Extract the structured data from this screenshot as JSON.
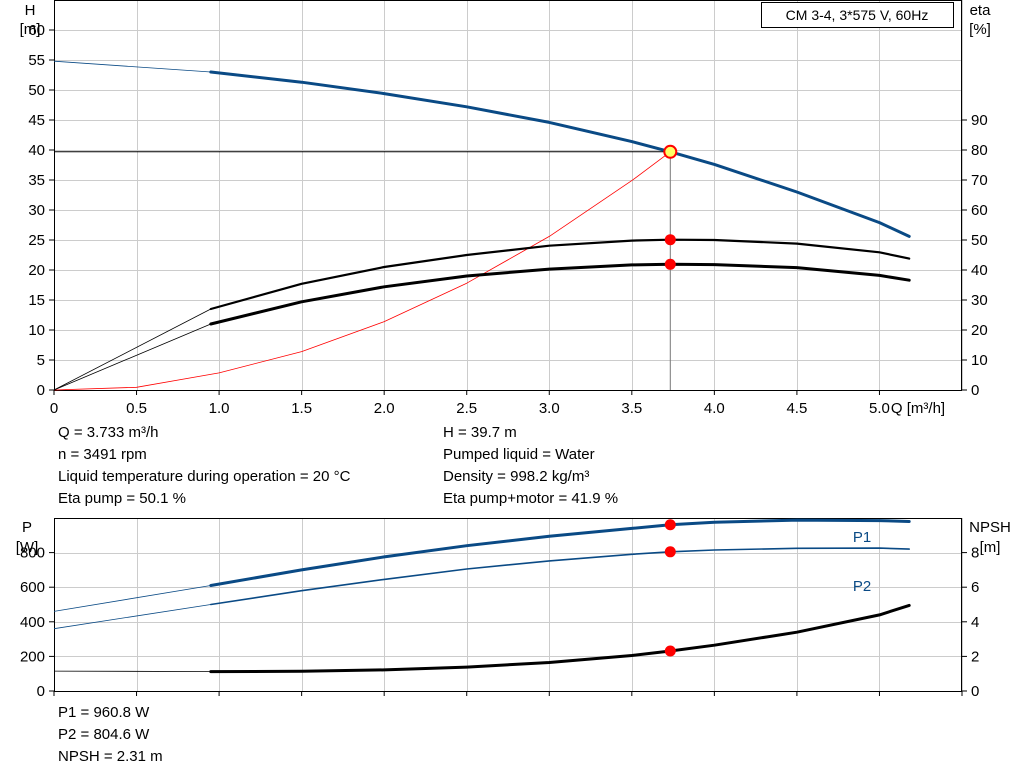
{
  "main_chart": {
    "type": "line",
    "legend_box": "CM 3-4, 3*575 V, 60Hz",
    "y_left_label": [
      "H",
      "[m]"
    ],
    "y_right_label": [
      "eta",
      "[%]"
    ],
    "x_label": "Q [m³/h]",
    "x_range": [
      0,
      5.5
    ],
    "y_left_range": [
      0,
      65
    ],
    "y_right_range": [
      0,
      130
    ],
    "x_ticks": [
      "0",
      "0.5",
      "1.0",
      "1.5",
      "2.0",
      "2.5",
      "3.0",
      "3.5",
      "4.0",
      "4.5",
      "5.0"
    ],
    "y_left_ticks": [
      "0",
      "5",
      "10",
      "15",
      "20",
      "25",
      "30",
      "35",
      "40",
      "45",
      "50",
      "55",
      "60"
    ],
    "y_right_ticks": [
      "0",
      "10",
      "20",
      "30",
      "40",
      "50",
      "60",
      "70",
      "80",
      "90"
    ],
    "grid": true
  },
  "chart_data": [
    {
      "type": "line",
      "x_range": [
        0,
        5.5
      ],
      "y_range": [
        0,
        65
      ],
      "xlabel": "Q [m³/h]",
      "ylabel": "H [m]",
      "y2label": "eta [%]",
      "series": [
        {
          "color": "#0a4a85",
          "axis": "H",
          "x": [
            0,
            0.95,
            1.5,
            2.0,
            2.5,
            3.0,
            3.5,
            3.733,
            4.0,
            4.5,
            5.0,
            5.18
          ],
          "y": [
            54.8,
            53.0,
            51.3,
            49.4,
            47.2,
            44.6,
            41.4,
            39.7,
            37.6,
            33.0,
            27.9,
            25.6
          ],
          "extrapolated_below_x": 0.95
        },
        {
          "color": "#000000",
          "axis": "eta",
          "x": [
            0,
            0.95,
            1.5,
            2.0,
            2.5,
            3.0,
            3.5,
            3.733,
            4.0,
            4.5,
            5.0,
            5.18
          ],
          "y": [
            0,
            27.0,
            35.4,
            41.0,
            45.0,
            48.1,
            49.8,
            50.1,
            50.0,
            48.8,
            45.9,
            43.8
          ],
          "extrapolated_below_x": 0.95
        },
        {
          "color": "#000000",
          "axis": "eta",
          "x": [
            0,
            0.95,
            1.5,
            2.0,
            2.5,
            3.0,
            3.5,
            3.733,
            4.0,
            4.5,
            5.0,
            5.18
          ],
          "y": [
            0,
            22.0,
            29.4,
            34.4,
            38.0,
            40.3,
            41.7,
            41.9,
            41.8,
            40.8,
            38.2,
            36.6
          ],
          "extrapolated_below_x": 0.95
        },
        {
          "color": "#ff0000",
          "axis": "H",
          "x": [
            0,
            0.5,
            1.0,
            1.5,
            2.0,
            2.5,
            3.0,
            3.5,
            3.733
          ],
          "y": [
            0,
            0.45,
            2.85,
            6.4,
            11.4,
            17.8,
            25.6,
            34.9,
            39.7
          ]
        }
      ],
      "operating_point": {
        "Q": 3.733,
        "H": 39.7,
        "eta_pump": 50.1,
        "eta_pump_motor": 41.9
      }
    },
    {
      "type": "line",
      "x_range": [
        0,
        5.5
      ],
      "y_range": [
        0,
        1000
      ],
      "ylabel": "P [W]",
      "y2label": "NPSH [m]",
      "series": [
        {
          "name": "P1",
          "color": "#0a4a85",
          "axis": "P",
          "x": [
            0,
            0.95,
            1.5,
            2.0,
            2.5,
            3.0,
            3.5,
            3.733,
            4.0,
            4.5,
            5.0,
            5.18
          ],
          "y": [
            460,
            610,
            700,
            775,
            840,
            895,
            940,
            960.8,
            975,
            988,
            985,
            980
          ],
          "extrapolated_below_x": 0.95
        },
        {
          "name": "P2",
          "color": "#0a4a85",
          "axis": "P",
          "x": [
            0,
            0.95,
            1.5,
            2.0,
            2.5,
            3.0,
            3.5,
            3.733,
            4.0,
            4.5,
            5.0,
            5.18
          ],
          "y": [
            360,
            500,
            580,
            645,
            705,
            752,
            790,
            804.6,
            815,
            825,
            826,
            820
          ],
          "extrapolated_below_x": 0.95
        },
        {
          "color": "#000000",
          "axis": "NPSH",
          "x": [
            0,
            0.95,
            1.5,
            2.0,
            2.5,
            3.0,
            3.5,
            3.733,
            4.0,
            4.5,
            5.0,
            5.18
          ],
          "y": [
            1.15,
            1.12,
            1.14,
            1.22,
            1.38,
            1.65,
            2.05,
            2.31,
            2.65,
            3.4,
            4.4,
            4.95
          ],
          "extrapolated_below_x": 0.95
        }
      ]
    }
  ],
  "lower_chart": {
    "y_left_label": [
      "P",
      "[W]"
    ],
    "y_right_label": [
      "NPSH",
      "[m]"
    ],
    "y_left_range": [
      0,
      1000
    ],
    "y_right_range": [
      0,
      10
    ],
    "y_left_ticks": [
      "0",
      "200",
      "400",
      "600",
      "800"
    ],
    "y_right_ticks": [
      "0",
      "2",
      "4",
      "6",
      "8"
    ],
    "series_labels": {
      "p1": "P1",
      "p2": "P2"
    }
  },
  "info_left": [
    "Q = 3.733 m³/h",
    "n = 3491 rpm",
    "Liquid temperature during operation = 20 °C",
    "Eta pump = 50.1 %"
  ],
  "info_right": [
    "H = 39.7 m",
    "Pumped liquid = Water",
    "Density = 998.2 kg/m³",
    "Eta pump+motor = 41.9 %"
  ],
  "info_lower": [
    "P1 = 960.8 W",
    "P2 = 804.6 W",
    "NPSH = 2.31 m"
  ]
}
